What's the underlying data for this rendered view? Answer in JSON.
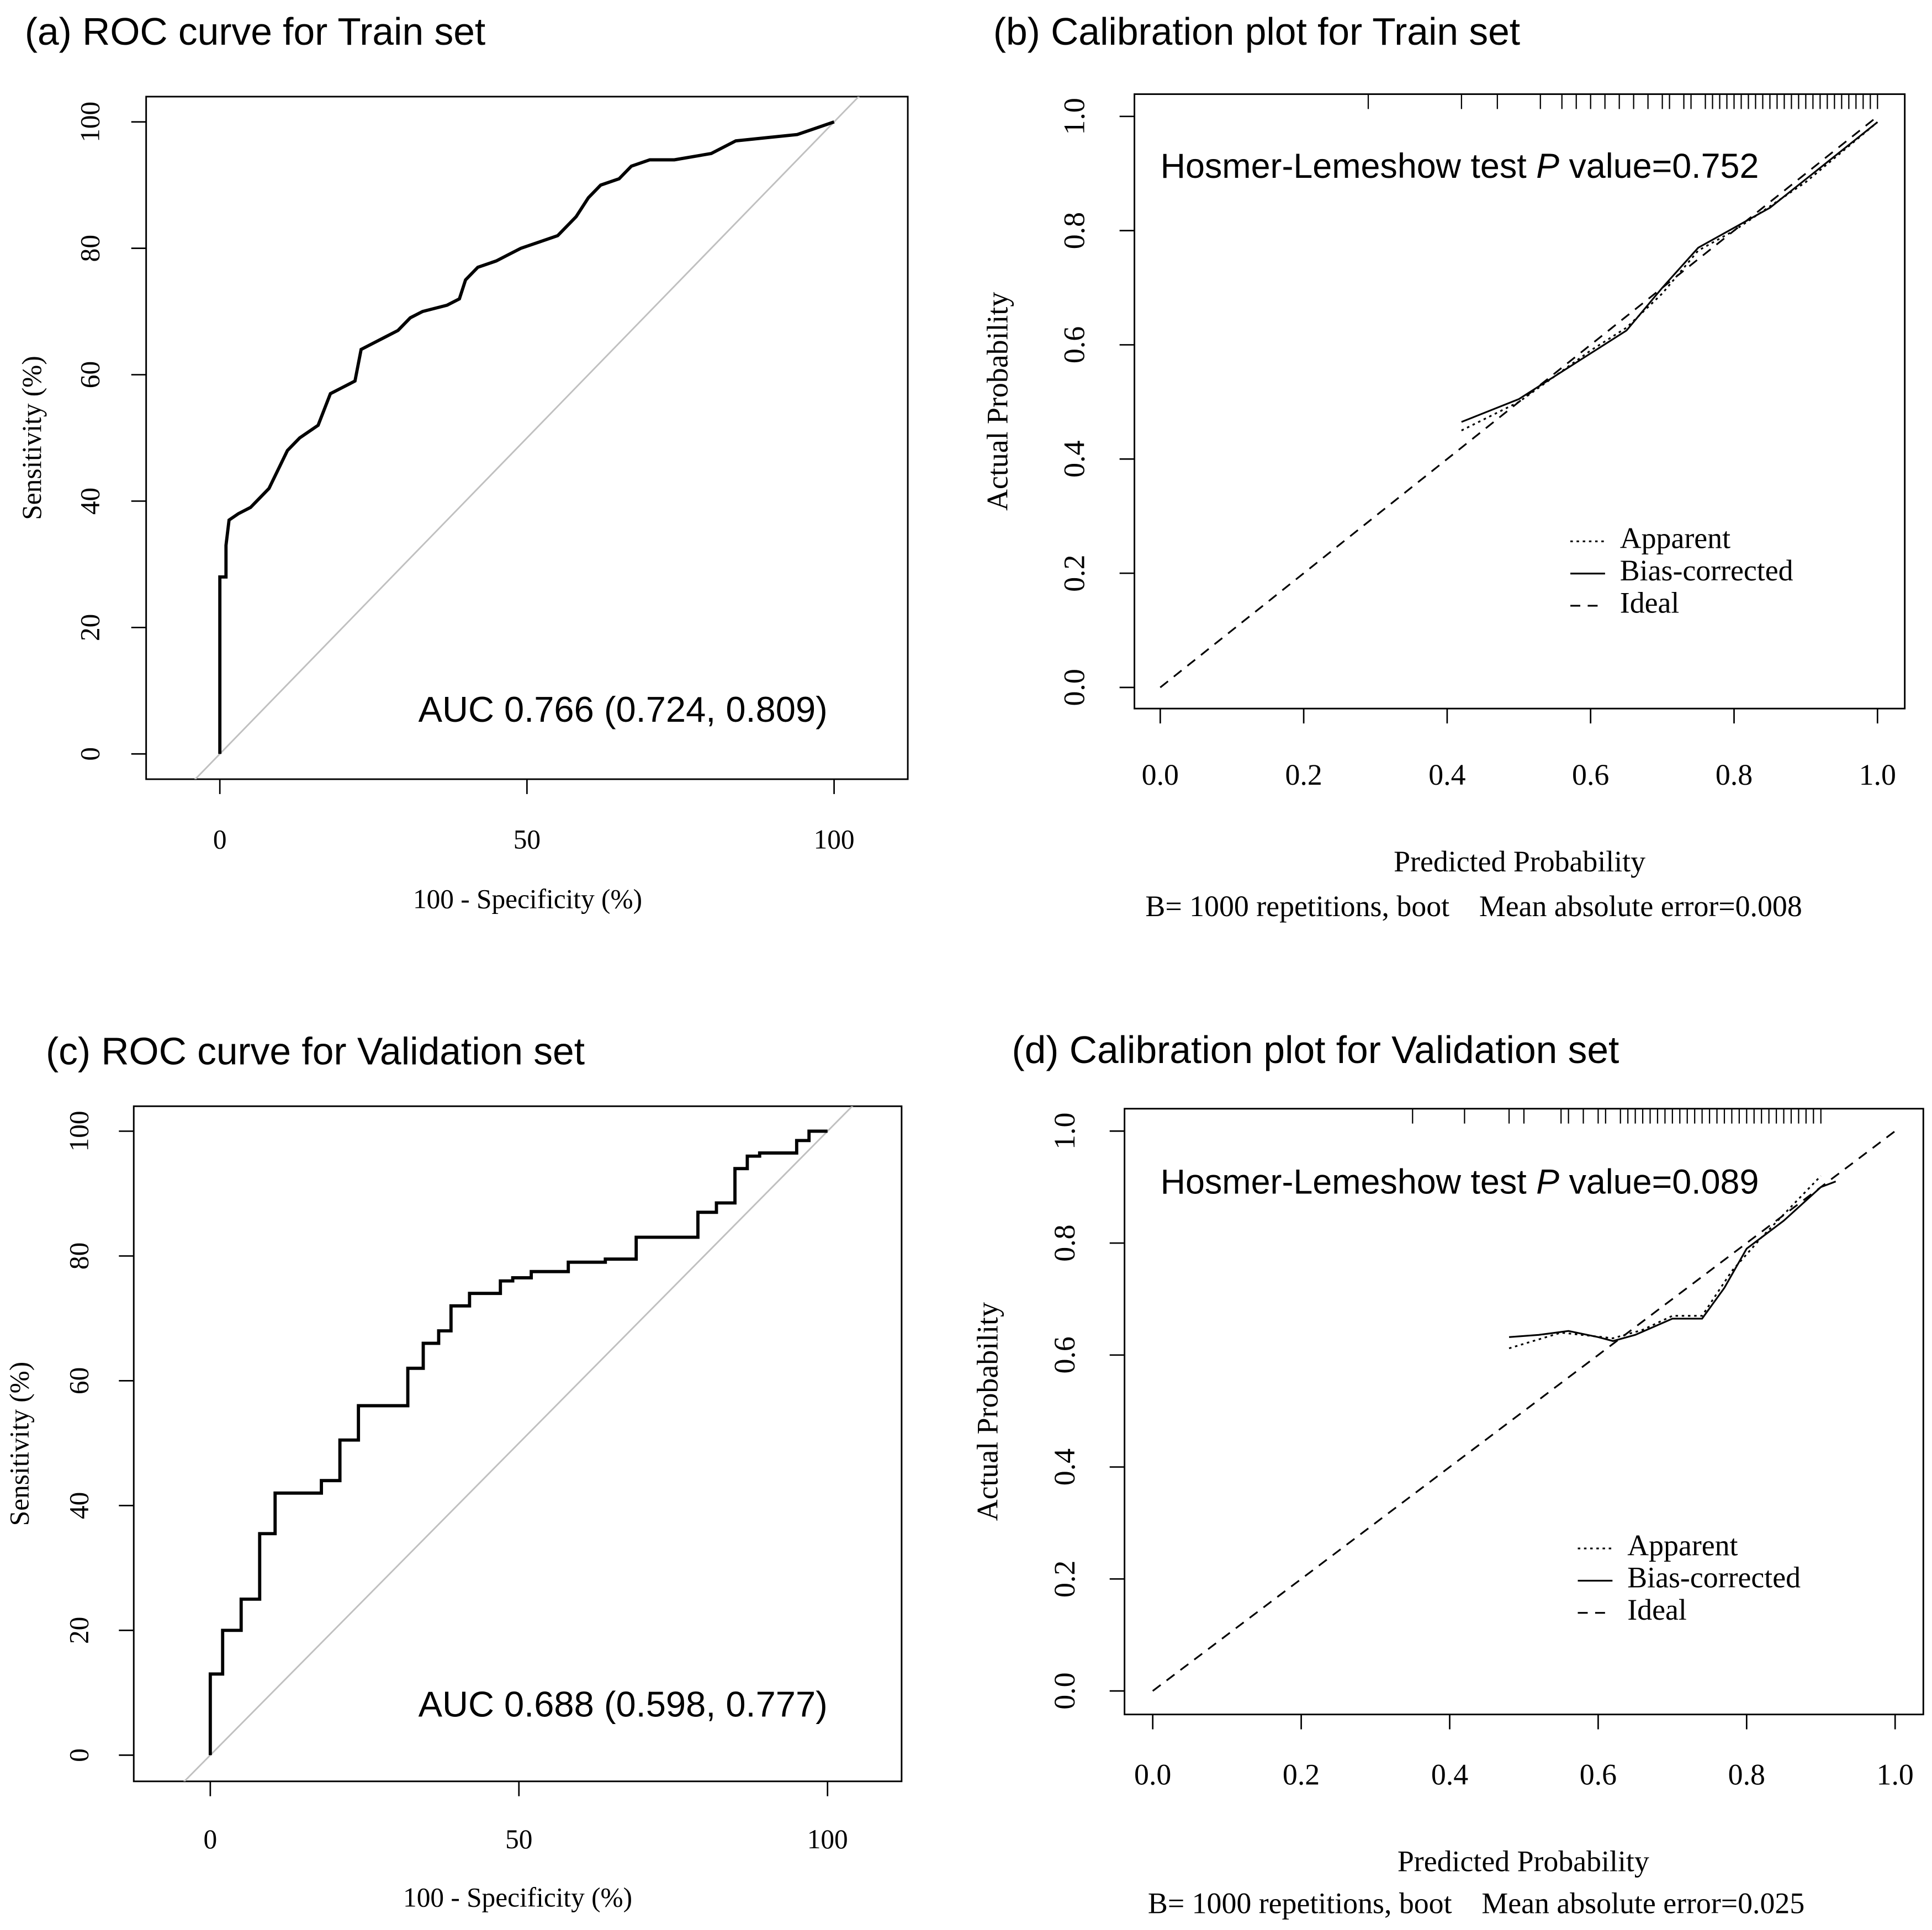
{
  "chart_data": [
    {
      "type": "roc",
      "title": "(a) ROC curve for Train set",
      "xlabel": "100 - Specificity (%)",
      "ylabel": "Sensitivity (%)",
      "annotation": "AUC 0.766 (0.724, 0.809)",
      "color": "#000000",
      "diagonal_color": "#c0c0c0",
      "x": [
        0,
        0,
        1,
        1,
        1.5,
        3,
        5,
        6,
        8,
        9,
        10,
        11,
        13,
        16,
        18,
        20,
        22,
        23,
        25,
        27,
        29,
        31,
        33,
        37,
        39,
        40,
        42,
        45,
        47,
        49,
        52,
        55,
        57,
        58,
        60,
        62,
        65,
        67,
        70,
        74,
        80,
        84,
        94,
        97,
        100
      ],
      "values": [
        0,
        28,
        28,
        33,
        37,
        38,
        39,
        40,
        42,
        44,
        46,
        48,
        50,
        52,
        57,
        58,
        59,
        64,
        65,
        66,
        67,
        69,
        70,
        71,
        72,
        75,
        77,
        78,
        79,
        80,
        81,
        82,
        84,
        85,
        88,
        90,
        91,
        93,
        94,
        94,
        95,
        97,
        98,
        99,
        100
      ],
      "xlim": [
        -12,
        112
      ],
      "ylim": [
        -4,
        104
      ],
      "xticks": [
        0,
        50,
        100
      ],
      "yticks": [
        0,
        20,
        40,
        60,
        80,
        100
      ]
    },
    {
      "type": "calibration",
      "title": "(b) Calibration plot for Train set",
      "xlabel": "Predicted Probability",
      "ylabel": "Actual Probability",
      "subtitle": "B= 1000 repetitions, boot    Mean absolute error=0.008",
      "annotation": [
        "Hosmer-Lemeshow test",
        "P",
        "value=0.752"
      ],
      "series": [
        {
          "name": "Apparent",
          "color": "#000000",
          "dash": "dotted",
          "x": [
            0.42,
            0.5,
            0.6,
            0.65,
            0.7,
            0.75,
            0.8,
            0.9,
            1.0
          ],
          "values": [
            0.45,
            0.5,
            0.59,
            0.63,
            0.69,
            0.765,
            0.8,
            0.885,
            0.99
          ]
        },
        {
          "name": "Bias-corrected",
          "color": "#000000",
          "dash": "solid",
          "x": [
            0.42,
            0.45,
            0.5,
            0.55,
            0.6,
            0.65,
            0.7,
            0.75,
            0.8,
            0.85,
            0.9,
            0.95,
            1.0
          ],
          "values": [
            0.465,
            0.48,
            0.505,
            0.545,
            0.585,
            0.625,
            0.7,
            0.77,
            0.805,
            0.84,
            0.89,
            0.94,
            0.99
          ]
        },
        {
          "name": "Ideal",
          "color": "#000000",
          "dash": "dashed",
          "x": [
            0,
            1
          ],
          "values": [
            0,
            1
          ]
        }
      ],
      "rug": [
        0.29,
        0.42,
        0.47,
        0.53,
        0.56,
        0.58,
        0.6,
        0.62,
        0.64,
        0.66,
        0.68,
        0.7,
        0.71,
        0.73,
        0.74,
        0.76,
        0.77,
        0.78,
        0.79,
        0.8,
        0.81,
        0.82,
        0.83,
        0.84,
        0.85,
        0.86,
        0.87,
        0.88,
        0.89,
        0.9,
        0.91,
        0.92,
        0.93,
        0.94,
        0.95,
        0.96,
        0.97,
        0.98,
        0.99,
        1.0
      ],
      "legend": "right",
      "xlim": [
        -0.036,
        1.038
      ],
      "ylim": [
        -0.037,
        1.039
      ],
      "xticks": [
        {
          "value": 0,
          "label": "0.0"
        },
        0.2,
        0.4,
        0.6,
        0.8,
        {
          "value": 1,
          "label": "1.0"
        }
      ],
      "yticks": [
        {
          "value": 0,
          "label": "0.0"
        },
        0.2,
        0.4,
        0.6,
        0.8,
        {
          "value": 1,
          "label": "1.0"
        }
      ]
    },
    {
      "type": "roc",
      "title": "(c) ROC curve for Validation set",
      "xlabel": "100 - Specificity (%)",
      "ylabel": "Sensitivity (%)",
      "annotation": "AUC 0.688 (0.598, 0.777)",
      "color": "#000000",
      "diagonal_color": "#c0c0c0",
      "x": [
        0,
        0,
        2,
        2,
        5,
        5,
        8,
        8,
        10.5,
        10.5,
        18,
        18,
        21,
        21,
        24,
        24,
        32,
        32,
        34.5,
        34.5,
        37,
        37,
        39,
        39,
        42,
        42,
        47,
        47,
        49,
        49,
        52,
        52,
        58,
        58,
        64,
        64,
        69,
        69,
        79,
        79,
        82,
        82,
        85,
        85,
        87,
        87,
        89,
        89,
        95,
        95,
        97,
        97,
        100
      ],
      "values": [
        0,
        13,
        13,
        20,
        20,
        25,
        25,
        35.5,
        35.5,
        42,
        42,
        44,
        44,
        50.5,
        50.5,
        56,
        56,
        62,
        62,
        66,
        66,
        68,
        68,
        72,
        72,
        74,
        74,
        76,
        76,
        76.5,
        76.5,
        77.5,
        77.5,
        79,
        79,
        79.5,
        79.5,
        83,
        83,
        87,
        87,
        88.5,
        88.5,
        94,
        94,
        96,
        96,
        96.5,
        96.5,
        98.5,
        98.5,
        100,
        100
      ],
      "xlim": [
        -12.4,
        112
      ],
      "ylim": [
        -4.2,
        104
      ],
      "xticks": [
        0,
        50,
        100
      ],
      "yticks": [
        0,
        20,
        40,
        60,
        80,
        100
      ]
    },
    {
      "type": "calibration",
      "title": "(d) Calibration plot for Validation set",
      "xlabel": "Predicted Probability",
      "ylabel": "Actual Probability",
      "subtitle": "B= 1000 repetitions, boot    Mean absolute error=0.025",
      "annotation": [
        "Hosmer-Lemeshow test",
        "P",
        "value=0.089"
      ],
      "series": [
        {
          "name": "Apparent",
          "color": "#000000",
          "dash": "dotted",
          "x": [
            0.48,
            0.55,
            0.62,
            0.66,
            0.7,
            0.74,
            0.78,
            0.82,
            0.9
          ],
          "values": [
            0.612,
            0.64,
            0.63,
            0.645,
            0.67,
            0.67,
            0.75,
            0.81,
            0.92
          ]
        },
        {
          "name": "Bias-corrected",
          "color": "#000000",
          "dash": "solid",
          "x": [
            0.48,
            0.52,
            0.56,
            0.6,
            0.62,
            0.65,
            0.7,
            0.74,
            0.77,
            0.8,
            0.85,
            0.9,
            0.92
          ],
          "values": [
            0.632,
            0.636,
            0.643,
            0.632,
            0.625,
            0.636,
            0.665,
            0.665,
            0.72,
            0.79,
            0.84,
            0.9,
            0.91
          ]
        },
        {
          "name": "Ideal",
          "color": "#000000",
          "dash": "dashed",
          "x": [
            0,
            1
          ],
          "values": [
            0,
            1
          ]
        }
      ],
      "rug": [
        0.35,
        0.42,
        0.48,
        0.5,
        0.55,
        0.56,
        0.58,
        0.6,
        0.61,
        0.63,
        0.64,
        0.65,
        0.66,
        0.67,
        0.68,
        0.69,
        0.7,
        0.71,
        0.72,
        0.73,
        0.74,
        0.75,
        0.76,
        0.77,
        0.78,
        0.79,
        0.8,
        0.81,
        0.82,
        0.83,
        0.84,
        0.85,
        0.86,
        0.87,
        0.88,
        0.89,
        0.9
      ],
      "legend": "right",
      "xlim": [
        -0.038,
        1.038
      ],
      "ylim": [
        -0.042,
        1.04
      ],
      "xticks": [
        {
          "value": 0,
          "label": "0.0"
        },
        0.2,
        0.4,
        0.6,
        0.8,
        {
          "value": 1,
          "label": "1.0"
        }
      ],
      "yticks": [
        {
          "value": 0,
          "label": "0.0"
        },
        0.2,
        0.4,
        0.6,
        0.8,
        {
          "value": 1,
          "label": "1.0"
        }
      ]
    }
  ]
}
